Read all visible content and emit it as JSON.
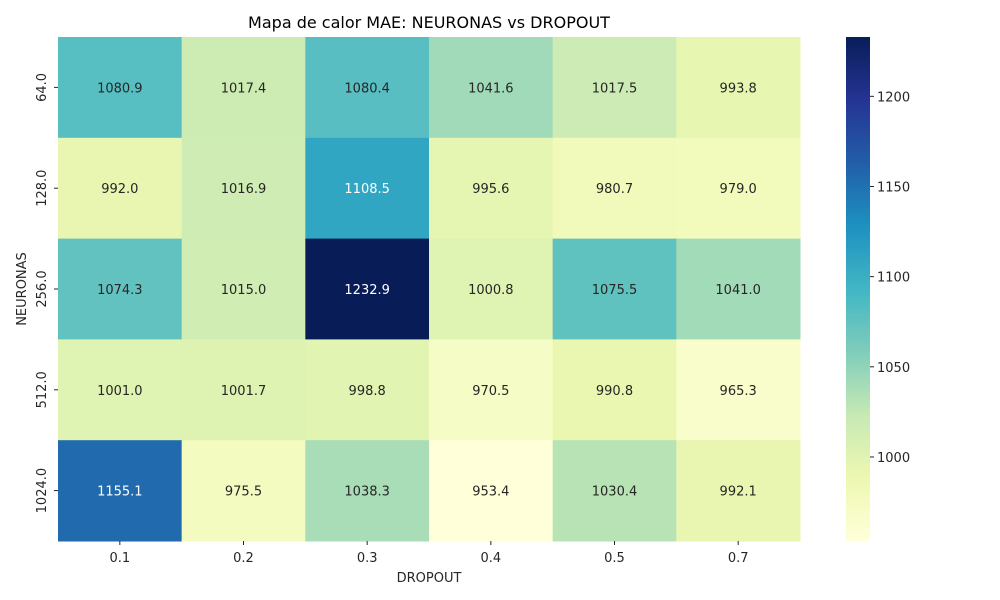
{
  "chart_data": {
    "type": "heatmap",
    "title": "Mapa de calor MAE: NEURONAS vs DROPOUT",
    "xlabel": "DROPOUT",
    "ylabel": "NEURONAS",
    "x_categories": [
      "0.1",
      "0.2",
      "0.3",
      "0.4",
      "0.5",
      "0.7"
    ],
    "y_categories": [
      "64.0",
      "128.0",
      "256.0",
      "512.0",
      "1024.0"
    ],
    "values": [
      [
        1080.9,
        1017.4,
        1080.4,
        1041.6,
        1017.5,
        993.8
      ],
      [
        992.0,
        1016.9,
        1108.5,
        995.6,
        980.7,
        979.0
      ],
      [
        1074.3,
        1015.0,
        1232.9,
        1000.8,
        1075.5,
        1041.0
      ],
      [
        1001.0,
        1001.7,
        998.8,
        970.5,
        990.8,
        965.3
      ],
      [
        1155.1,
        975.5,
        1038.3,
        953.4,
        1030.4,
        992.1
      ]
    ],
    "value_labels": [
      [
        "1080.9",
        "1017.4",
        "1080.4",
        "1041.6",
        "1017.5",
        "993.8"
      ],
      [
        "992.0",
        "1016.9",
        "1108.5",
        "995.6",
        "980.7",
        "979.0"
      ],
      [
        "1074.3",
        "1015.0",
        "1232.9",
        "1000.8",
        "1075.5",
        "1041.0"
      ],
      [
        "1001.0",
        "1001.7",
        "998.8",
        "970.5",
        "990.8",
        "965.3"
      ],
      [
        "1155.1",
        "975.5",
        "1038.3",
        "953.4",
        "1030.4",
        "992.1"
      ]
    ],
    "colormap": "YlGnBu",
    "color_range": [
      953.4,
      1232.9
    ],
    "colorbar_ticks": [
      "1000",
      "1050",
      "1100",
      "1150",
      "1200"
    ],
    "colorbar_tick_values": [
      1000,
      1050,
      1100,
      1150,
      1200
    ],
    "grid": false
  }
}
